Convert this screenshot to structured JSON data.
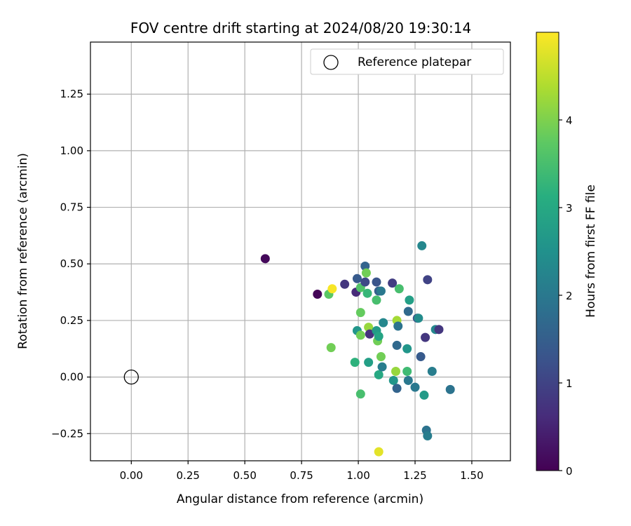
{
  "chart_data": {
    "type": "scatter",
    "title": "FOV centre drift starting at 2024/08/20 19:30:14",
    "xlabel": "Angular distance from reference (arcmin)",
    "ylabel": "Rotation from reference (arcmin)",
    "xlim": [
      -0.18,
      1.67
    ],
    "ylim": [
      -0.37,
      1.48
    ],
    "xticks": [
      0.0,
      0.25,
      0.5,
      0.75,
      1.0,
      1.25,
      1.5
    ],
    "xtick_labels": [
      "0.00",
      "0.25",
      "0.50",
      "0.75",
      "1.00",
      "1.25",
      "1.50"
    ],
    "yticks": [
      -0.25,
      0.0,
      0.25,
      0.5,
      0.75,
      1.0,
      1.25
    ],
    "ytick_labels": [
      "−0.25",
      "0.00",
      "0.25",
      "0.50",
      "0.75",
      "1.00",
      "1.25"
    ],
    "grid": true,
    "legend": {
      "position": "top-right",
      "entries": [
        "Reference platepar"
      ]
    },
    "reference_point": {
      "x": 0.0,
      "y": 0.0,
      "marker": "open-circle"
    },
    "colorbar": {
      "label": "Hours from first FF file",
      "colormap": "viridis",
      "range": [
        0,
        5.0
      ],
      "ticks": [
        0,
        1,
        2,
        3,
        4
      ],
      "tick_labels": [
        "0",
        "1",
        "2",
        "3",
        "4"
      ]
    },
    "points": [
      {
        "x": 0.59,
        "y": 0.523,
        "c": 0.1
      },
      {
        "x": 0.82,
        "y": 0.366,
        "c": 0.05
      },
      {
        "x": 0.87,
        "y": 0.366,
        "c": 3.7
      },
      {
        "x": 0.885,
        "y": 0.39,
        "c": 4.95
      },
      {
        "x": 0.88,
        "y": 0.13,
        "c": 3.9
      },
      {
        "x": 0.94,
        "y": 0.41,
        "c": 0.8
      },
      {
        "x": 0.985,
        "y": 0.065,
        "c": 3.2
      },
      {
        "x": 0.99,
        "y": 0.375,
        "c": 0.6
      },
      {
        "x": 0.995,
        "y": 0.435,
        "c": 1.4
      },
      {
        "x": 0.995,
        "y": 0.205,
        "c": 2.6
      },
      {
        "x": 1.01,
        "y": 0.285,
        "c": 3.8
      },
      {
        "x": 1.01,
        "y": 0.395,
        "c": 3.6
      },
      {
        "x": 1.01,
        "y": 0.185,
        "c": 3.9
      },
      {
        "x": 1.01,
        "y": -0.075,
        "c": 3.5
      },
      {
        "x": 1.03,
        "y": 0.49,
        "c": 1.6
      },
      {
        "x": 1.03,
        "y": 0.42,
        "c": 1.1
      },
      {
        "x": 1.035,
        "y": 0.46,
        "c": 3.9
      },
      {
        "x": 1.04,
        "y": 0.37,
        "c": 3.3
      },
      {
        "x": 1.045,
        "y": 0.065,
        "c": 2.8
      },
      {
        "x": 1.045,
        "y": 0.22,
        "c": 4.2
      },
      {
        "x": 1.05,
        "y": 0.19,
        "c": 0.7
      },
      {
        "x": 1.08,
        "y": 0.34,
        "c": 3.5
      },
      {
        "x": 1.08,
        "y": 0.42,
        "c": 1.3
      },
      {
        "x": 1.08,
        "y": 0.205,
        "c": 2.7
      },
      {
        "x": 1.085,
        "y": 0.16,
        "c": 3.9
      },
      {
        "x": 1.09,
        "y": 0.18,
        "c": 2.9
      },
      {
        "x": 1.09,
        "y": 0.38,
        "c": 1.5
      },
      {
        "x": 1.09,
        "y": 0.01,
        "c": 3.0
      },
      {
        "x": 1.09,
        "y": -0.33,
        "c": 4.8
      },
      {
        "x": 1.1,
        "y": 0.38,
        "c": 2.0
      },
      {
        "x": 1.1,
        "y": 0.09,
        "c": 3.9
      },
      {
        "x": 1.105,
        "y": 0.045,
        "c": 2.1
      },
      {
        "x": 1.11,
        "y": 0.24,
        "c": 2.3
      },
      {
        "x": 1.15,
        "y": 0.415,
        "c": 0.9
      },
      {
        "x": 1.155,
        "y": -0.015,
        "c": 2.6
      },
      {
        "x": 1.165,
        "y": 0.025,
        "c": 4.2
      },
      {
        "x": 1.17,
        "y": 0.14,
        "c": 1.7
      },
      {
        "x": 1.17,
        "y": 0.25,
        "c": 4.3
      },
      {
        "x": 1.17,
        "y": -0.05,
        "c": 1.6
      },
      {
        "x": 1.175,
        "y": 0.225,
        "c": 1.9
      },
      {
        "x": 1.18,
        "y": 0.39,
        "c": 3.5
      },
      {
        "x": 1.215,
        "y": 0.125,
        "c": 2.6
      },
      {
        "x": 1.215,
        "y": 0.025,
        "c": 3.4
      },
      {
        "x": 1.22,
        "y": 0.29,
        "c": 1.7
      },
      {
        "x": 1.22,
        "y": -0.015,
        "c": 2.0
      },
      {
        "x": 1.225,
        "y": 0.34,
        "c": 2.8
      },
      {
        "x": 1.25,
        "y": -0.045,
        "c": 2.0
      },
      {
        "x": 1.26,
        "y": 0.26,
        "c": 1.2
      },
      {
        "x": 1.265,
        "y": 0.26,
        "c": 2.4
      },
      {
        "x": 1.275,
        "y": 0.09,
        "c": 1.4
      },
      {
        "x": 1.28,
        "y": 0.58,
        "c": 2.3
      },
      {
        "x": 1.29,
        "y": -0.08,
        "c": 2.7
      },
      {
        "x": 1.295,
        "y": 0.175,
        "c": 0.8
      },
      {
        "x": 1.3,
        "y": -0.235,
        "c": 1.9
      },
      {
        "x": 1.305,
        "y": 0.43,
        "c": 1.0
      },
      {
        "x": 1.305,
        "y": -0.26,
        "c": 2.1
      },
      {
        "x": 1.325,
        "y": 0.025,
        "c": 2.1
      },
      {
        "x": 1.34,
        "y": 0.21,
        "c": 2.3
      },
      {
        "x": 1.355,
        "y": 0.21,
        "c": 0.8
      },
      {
        "x": 1.405,
        "y": -0.055,
        "c": 1.9
      }
    ]
  }
}
